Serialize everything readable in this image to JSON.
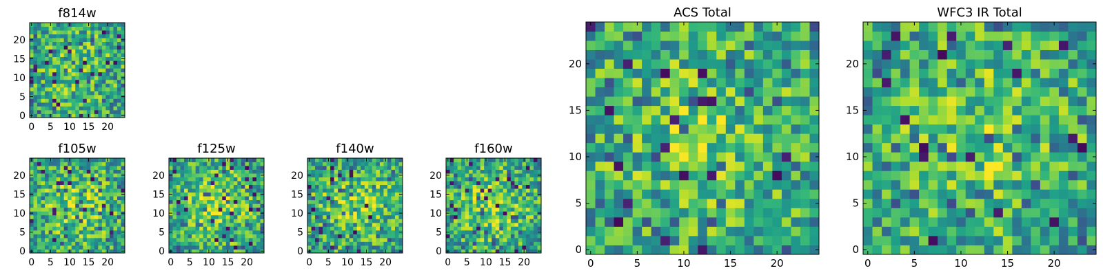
{
  "chart_data": [
    {
      "type": "heatmap",
      "title": "f814w",
      "grid_size": 25,
      "x_ticks": [
        0,
        5,
        10,
        15,
        20
      ],
      "y_ticks": [
        0,
        5,
        10,
        15,
        20
      ],
      "xlim": [
        0,
        24
      ],
      "ylim": [
        0,
        24
      ],
      "colormap": "viridis",
      "seed": 814,
      "hot_center": 0.35
    },
    {
      "type": "heatmap",
      "title": "f105w",
      "grid_size": 25,
      "x_ticks": [
        0,
        5,
        10,
        15,
        20
      ],
      "y_ticks": [
        0,
        5,
        10,
        15,
        20
      ],
      "xlim": [
        0,
        24
      ],
      "ylim": [
        0,
        24
      ],
      "colormap": "viridis",
      "seed": 105,
      "hot_center": 0.55
    },
    {
      "type": "heatmap",
      "title": "f125w",
      "grid_size": 25,
      "x_ticks": [
        0,
        5,
        10,
        15,
        20
      ],
      "y_ticks": [
        0,
        5,
        10,
        15,
        20
      ],
      "xlim": [
        0,
        24
      ],
      "ylim": [
        0,
        24
      ],
      "colormap": "viridis",
      "seed": 125,
      "hot_center": 0.6
    },
    {
      "type": "heatmap",
      "title": "f140w",
      "grid_size": 25,
      "x_ticks": [
        0,
        5,
        10,
        15,
        20
      ],
      "y_ticks": [
        0,
        5,
        10,
        15,
        20
      ],
      "xlim": [
        0,
        24
      ],
      "ylim": [
        0,
        24
      ],
      "colormap": "viridis",
      "seed": 140,
      "hot_center": 0.55
    },
    {
      "type": "heatmap",
      "title": "f160w",
      "grid_size": 25,
      "x_ticks": [
        0,
        5,
        10,
        15,
        20
      ],
      "y_ticks": [
        0,
        5,
        10,
        15,
        20
      ],
      "xlim": [
        0,
        24
      ],
      "ylim": [
        0,
        24
      ],
      "colormap": "viridis",
      "seed": 160,
      "hot_center": 0.55
    },
    {
      "type": "heatmap",
      "title": "ACS Total",
      "grid_size": 25,
      "x_ticks": [
        0,
        5,
        10,
        15,
        20
      ],
      "y_ticks": [
        0,
        5,
        10,
        15,
        20
      ],
      "xlim": [
        0,
        24
      ],
      "ylim": [
        0,
        24
      ],
      "colormap": "viridis",
      "seed": 9001,
      "hot_center": 0.4
    },
    {
      "type": "heatmap",
      "title": "WFC3 IR Total",
      "grid_size": 25,
      "x_ticks": [
        0,
        5,
        10,
        15,
        20
      ],
      "y_ticks": [
        0,
        5,
        10,
        15,
        20
      ],
      "xlim": [
        0,
        24
      ],
      "ylim": [
        0,
        24
      ],
      "colormap": "viridis",
      "seed": 9002,
      "hot_center": 0.4
    }
  ]
}
